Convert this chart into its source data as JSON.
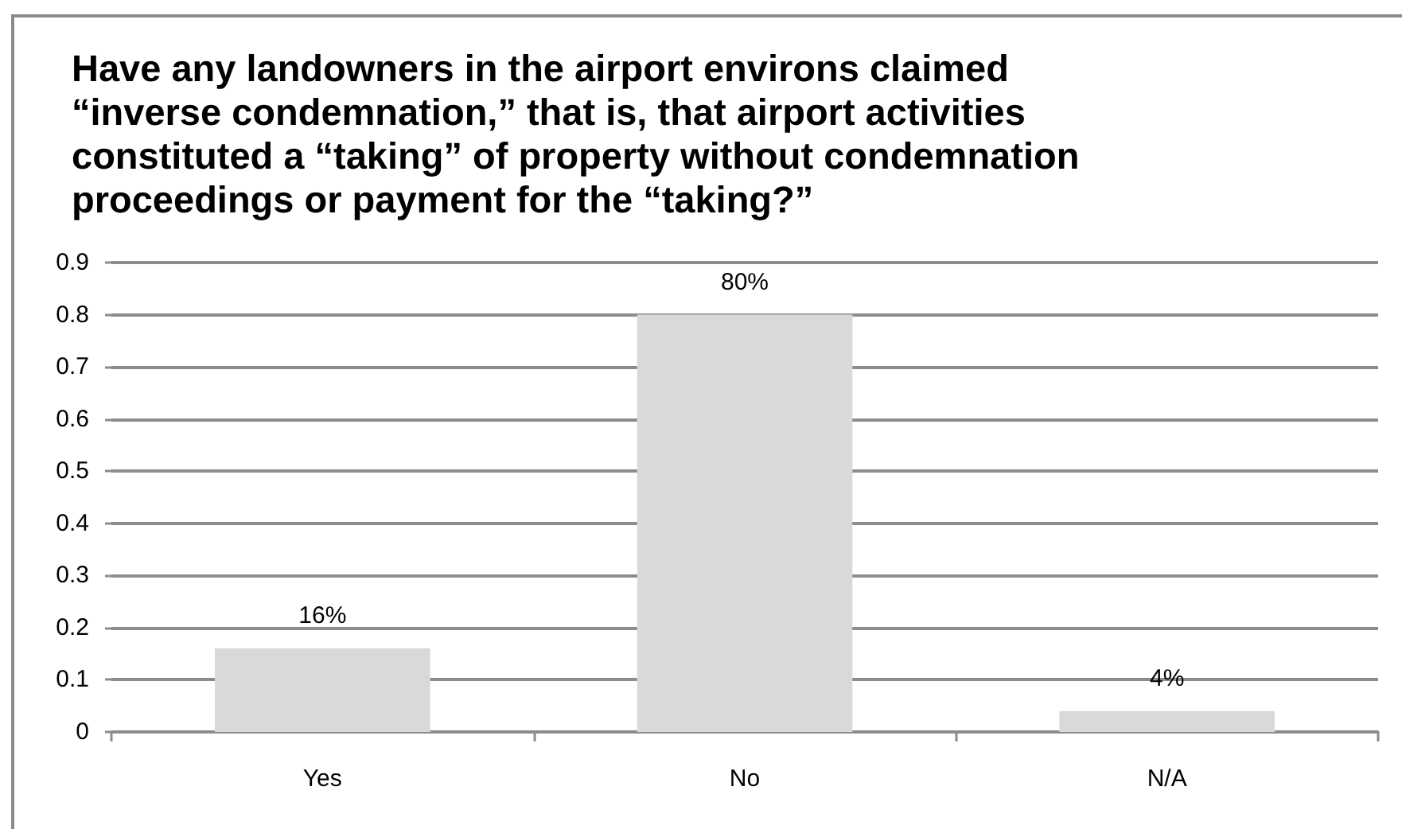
{
  "chart_data": {
    "type": "bar",
    "title": "Have any landowners in the airport environs claimed “inverse condemnation,” that is, that airport activities constituted a “taking” of property without condemnation proceedings or payment for the “taking?”",
    "categories": [
      "Yes",
      "No",
      "N/A"
    ],
    "values": [
      0.16,
      0.8,
      0.04
    ],
    "color": "#d9d9d9",
    "value_labels": [
      "16%",
      "80%",
      "4%"
    ],
    "ylim": [
      0,
      0.9
    ],
    "yticks": [
      0,
      0.1,
      0.2,
      0.3,
      0.4,
      0.5,
      0.6,
      0.7,
      0.8,
      0.9
    ],
    "grid": "y"
  }
}
